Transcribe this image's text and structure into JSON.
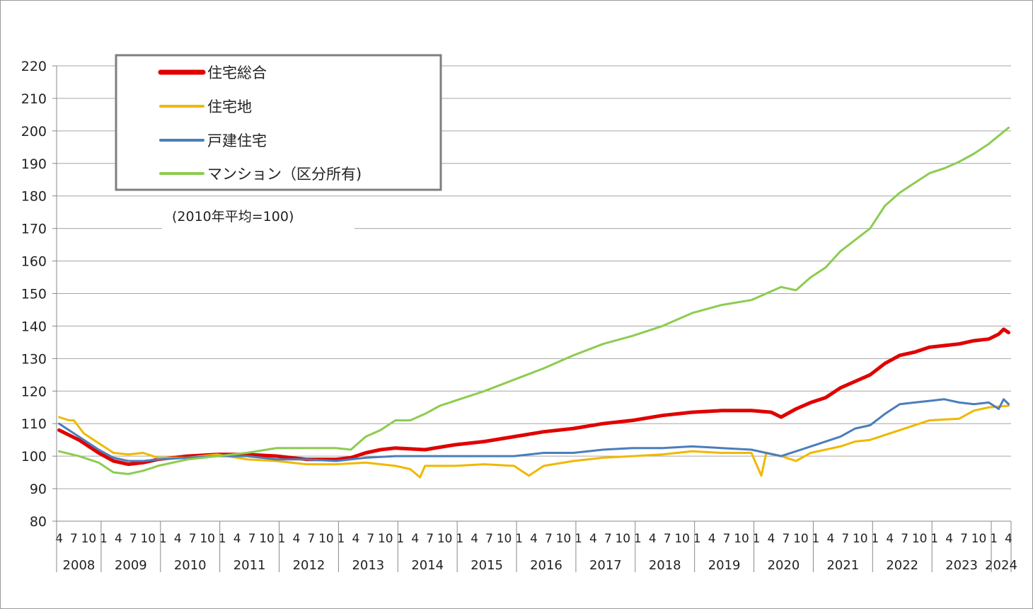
{
  "chart_data": {
    "type": "line",
    "note": "(2010年平均=100)",
    "ylim": [
      80,
      220
    ],
    "yticks": [
      80,
      90,
      100,
      110,
      120,
      130,
      140,
      150,
      160,
      170,
      180,
      190,
      200,
      210,
      220
    ],
    "grid": true,
    "legend_position": "top-left",
    "x_start": "2008-04",
    "x_end": "2024-04",
    "month_ticks": [
      "4",
      "7",
      "10",
      "1"
    ],
    "years": [
      "2008",
      "2009",
      "2010",
      "2011",
      "2012",
      "2013",
      "2014",
      "2015",
      "2016",
      "2017",
      "2018",
      "2019",
      "2020",
      "2021",
      "2022",
      "2023",
      "2024"
    ],
    "series": [
      {
        "name": "住宅総合",
        "color": "#e00000",
        "width": 5,
        "points": [
          [
            "2008-04",
            108
          ],
          [
            "2008-08",
            105
          ],
          [
            "2008-12",
            101
          ],
          [
            "2009-03",
            98.5
          ],
          [
            "2009-06",
            97.5
          ],
          [
            "2009-09",
            98
          ],
          [
            "2009-12",
            99
          ],
          [
            "2010-06",
            100
          ],
          [
            "2010-12",
            100.5
          ],
          [
            "2011-06",
            100.5
          ],
          [
            "2011-12",
            100
          ],
          [
            "2012-06",
            99
          ],
          [
            "2012-12",
            99
          ],
          [
            "2013-03",
            99.5
          ],
          [
            "2013-06",
            101
          ],
          [
            "2013-09",
            102
          ],
          [
            "2013-12",
            102.5
          ],
          [
            "2014-06",
            102
          ],
          [
            "2014-12",
            103.5
          ],
          [
            "2015-06",
            104.5
          ],
          [
            "2015-12",
            106
          ],
          [
            "2016-06",
            107.5
          ],
          [
            "2016-12",
            108.5
          ],
          [
            "2017-06",
            110
          ],
          [
            "2017-12",
            111
          ],
          [
            "2018-06",
            112.5
          ],
          [
            "2018-12",
            113.5
          ],
          [
            "2019-06",
            114
          ],
          [
            "2019-12",
            114
          ],
          [
            "2020-04",
            113.5
          ],
          [
            "2020-06",
            112
          ],
          [
            "2020-09",
            114.5
          ],
          [
            "2020-12",
            116.5
          ],
          [
            "2021-03",
            118
          ],
          [
            "2021-06",
            121
          ],
          [
            "2021-09",
            123
          ],
          [
            "2021-12",
            125
          ],
          [
            "2022-03",
            128.5
          ],
          [
            "2022-06",
            131
          ],
          [
            "2022-09",
            132
          ],
          [
            "2022-12",
            133.5
          ],
          [
            "2023-03",
            134
          ],
          [
            "2023-06",
            134.5
          ],
          [
            "2023-09",
            135.5
          ],
          [
            "2023-12",
            136
          ],
          [
            "2024-02",
            137.5
          ],
          [
            "2024-03",
            139
          ],
          [
            "2024-04",
            138
          ]
        ]
      },
      {
        "name": "住宅地",
        "color": "#f0b800",
        "width": 3,
        "points": [
          [
            "2008-04",
            112
          ],
          [
            "2008-06",
            111
          ],
          [
            "2008-07",
            111
          ],
          [
            "2008-09",
            107
          ],
          [
            "2008-12",
            104
          ],
          [
            "2009-03",
            101
          ],
          [
            "2009-06",
            100.5
          ],
          [
            "2009-09",
            101
          ],
          [
            "2009-12",
            99.5
          ],
          [
            "2010-06",
            99.5
          ],
          [
            "2010-12",
            100.5
          ],
          [
            "2011-06",
            99
          ],
          [
            "2011-12",
            98.5
          ],
          [
            "2012-06",
            97.5
          ],
          [
            "2012-12",
            97.5
          ],
          [
            "2013-06",
            98
          ],
          [
            "2013-12",
            97
          ],
          [
            "2014-03",
            96
          ],
          [
            "2014-05",
            93.5
          ],
          [
            "2014-06",
            97
          ],
          [
            "2014-12",
            97
          ],
          [
            "2015-06",
            97.5
          ],
          [
            "2015-12",
            97
          ],
          [
            "2016-03",
            94
          ],
          [
            "2016-06",
            97
          ],
          [
            "2016-12",
            98.5
          ],
          [
            "2017-06",
            99.5
          ],
          [
            "2017-12",
            100
          ],
          [
            "2018-06",
            100.5
          ],
          [
            "2018-12",
            101.5
          ],
          [
            "2019-06",
            101
          ],
          [
            "2019-12",
            101
          ],
          [
            "2020-02",
            94
          ],
          [
            "2020-03",
            101
          ],
          [
            "2020-06",
            100
          ],
          [
            "2020-09",
            98.5
          ],
          [
            "2020-12",
            101
          ],
          [
            "2021-06",
            103
          ],
          [
            "2021-09",
            104.5
          ],
          [
            "2021-12",
            105
          ],
          [
            "2022-06",
            108
          ],
          [
            "2022-12",
            111
          ],
          [
            "2023-06",
            111.5
          ],
          [
            "2023-09",
            114
          ],
          [
            "2023-12",
            115
          ],
          [
            "2024-04",
            115.5
          ]
        ]
      },
      {
        "name": "戸建住宅",
        "color": "#4a7ebb",
        "width": 3,
        "points": [
          [
            "2008-04",
            110
          ],
          [
            "2008-08",
            106
          ],
          [
            "2008-12",
            102
          ],
          [
            "2009-03",
            99.5
          ],
          [
            "2009-06",
            98.5
          ],
          [
            "2009-09",
            98.5
          ],
          [
            "2009-12",
            99
          ],
          [
            "2010-06",
            99.5
          ],
          [
            "2010-12",
            100
          ],
          [
            "2011-06",
            100
          ],
          [
            "2011-12",
            99
          ],
          [
            "2012-06",
            99
          ],
          [
            "2012-12",
            98.5
          ],
          [
            "2013-06",
            99.5
          ],
          [
            "2013-12",
            100
          ],
          [
            "2014-06",
            100
          ],
          [
            "2014-12",
            100
          ],
          [
            "2015-06",
            100
          ],
          [
            "2015-12",
            100
          ],
          [
            "2016-06",
            101
          ],
          [
            "2016-12",
            101
          ],
          [
            "2017-06",
            102
          ],
          [
            "2017-12",
            102.5
          ],
          [
            "2018-06",
            102.5
          ],
          [
            "2018-12",
            103
          ],
          [
            "2019-06",
            102.5
          ],
          [
            "2019-12",
            102
          ],
          [
            "2020-06",
            100
          ],
          [
            "2020-09",
            101.5
          ],
          [
            "2020-12",
            103
          ],
          [
            "2021-06",
            106
          ],
          [
            "2021-09",
            108.5
          ],
          [
            "2021-12",
            109.5
          ],
          [
            "2022-03",
            113
          ],
          [
            "2022-06",
            116
          ],
          [
            "2022-09",
            116.5
          ],
          [
            "2022-12",
            117
          ],
          [
            "2023-03",
            117.5
          ],
          [
            "2023-06",
            116.5
          ],
          [
            "2023-09",
            116
          ],
          [
            "2023-12",
            116.5
          ],
          [
            "2024-02",
            114.5
          ],
          [
            "2024-03",
            117.5
          ],
          [
            "2024-04",
            116
          ]
        ]
      },
      {
        "name": "マンション（区分所有)",
        "color": "#8ccc50",
        "width": 3,
        "points": [
          [
            "2008-04",
            101.5
          ],
          [
            "2008-08",
            100
          ],
          [
            "2008-12",
            98
          ],
          [
            "2009-03",
            95
          ],
          [
            "2009-06",
            94.5
          ],
          [
            "2009-09",
            95.5
          ],
          [
            "2009-12",
            97
          ],
          [
            "2010-06",
            99
          ],
          [
            "2010-12",
            100
          ],
          [
            "2011-06",
            101
          ],
          [
            "2011-12",
            102.5
          ],
          [
            "2012-06",
            102.5
          ],
          [
            "2012-12",
            102.5
          ],
          [
            "2013-03",
            102
          ],
          [
            "2013-06",
            106
          ],
          [
            "2013-09",
            108
          ],
          [
            "2013-12",
            111
          ],
          [
            "2014-03",
            111
          ],
          [
            "2014-06",
            113
          ],
          [
            "2014-09",
            115.5
          ],
          [
            "2014-12",
            117
          ],
          [
            "2015-06",
            120
          ],
          [
            "2015-12",
            123.5
          ],
          [
            "2016-06",
            127
          ],
          [
            "2016-12",
            131
          ],
          [
            "2017-06",
            134.5
          ],
          [
            "2017-12",
            137
          ],
          [
            "2018-06",
            140
          ],
          [
            "2018-09",
            142
          ],
          [
            "2018-12",
            144
          ],
          [
            "2019-06",
            146.5
          ],
          [
            "2019-12",
            148
          ],
          [
            "2020-06",
            152
          ],
          [
            "2020-09",
            151
          ],
          [
            "2020-12",
            155
          ],
          [
            "2021-03",
            158
          ],
          [
            "2021-06",
            163
          ],
          [
            "2021-09",
            166.5
          ],
          [
            "2021-12",
            170
          ],
          [
            "2022-03",
            177
          ],
          [
            "2022-06",
            181
          ],
          [
            "2022-09",
            184
          ],
          [
            "2022-12",
            187
          ],
          [
            "2023-03",
            188.5
          ],
          [
            "2023-06",
            190.5
          ],
          [
            "2023-09",
            193
          ],
          [
            "2023-12",
            196
          ],
          [
            "2024-02",
            198.5
          ],
          [
            "2024-04",
            201
          ]
        ]
      }
    ]
  }
}
